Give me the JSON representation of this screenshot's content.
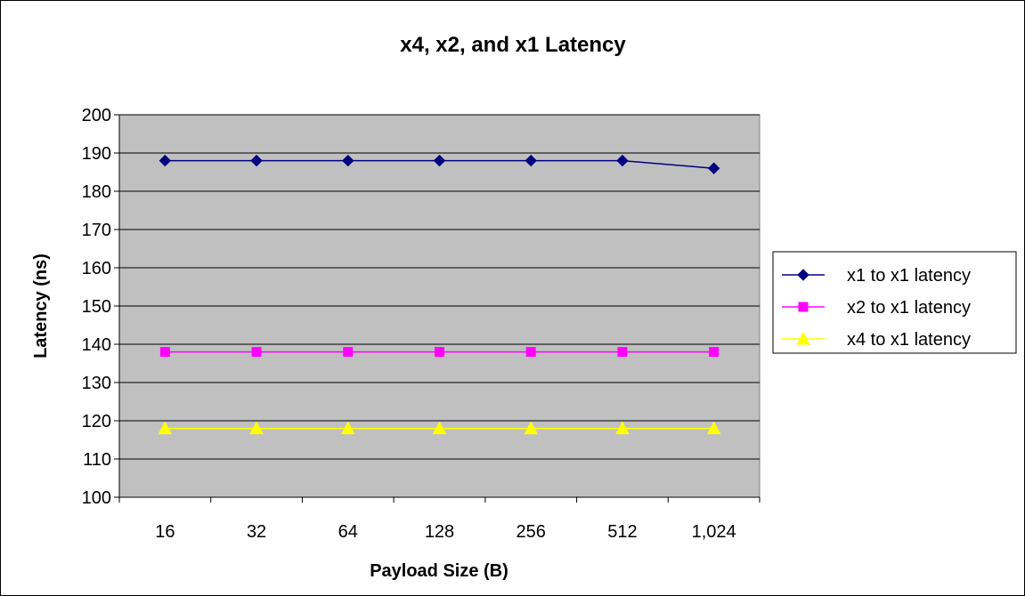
{
  "chart_data": {
    "type": "line",
    "title": "x4, x2, and x1 Latency",
    "xlabel": "Payload Size (B)",
    "ylabel": "Latency (ns)",
    "categories": [
      "16",
      "32",
      "64",
      "128",
      "256",
      "512",
      "1,024"
    ],
    "ylim": [
      100,
      200
    ],
    "yticks": [
      100,
      110,
      120,
      130,
      140,
      150,
      160,
      170,
      180,
      190,
      200
    ],
    "grid": "horizontal",
    "plot_background": "#c0c0c0",
    "legend_position": "right",
    "series": [
      {
        "name": "x1 to x1 latency",
        "values": [
          188,
          188,
          188,
          188,
          188,
          188,
          186
        ],
        "color": "#000080",
        "marker": "diamond"
      },
      {
        "name": "x2 to x1 latency",
        "values": [
          138,
          138,
          138,
          138,
          138,
          138,
          138
        ],
        "color": "#ff00ff",
        "marker": "square"
      },
      {
        "name": "x4 to x1 latency",
        "values": [
          118,
          118,
          118,
          118,
          118,
          118,
          118
        ],
        "color": "#ffff00",
        "marker": "triangle"
      }
    ]
  }
}
